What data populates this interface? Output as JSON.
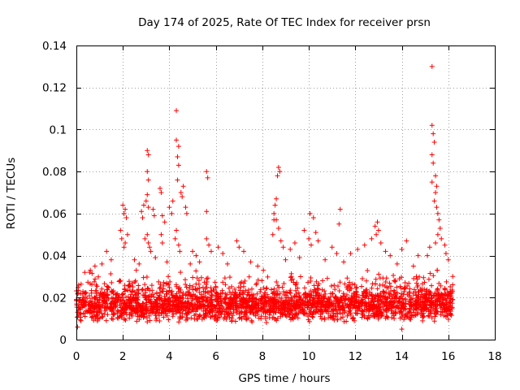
{
  "chart_data": {
    "type": "scatter",
    "title": "Day 174 of 2025, Rate Of TEC Index for receiver prsn",
    "xlabel": "GPS time / hours",
    "ylabel": "ROTI / TECUs",
    "xlim": [
      0,
      18
    ],
    "ylim": [
      0,
      0.14
    ],
    "xticks": [
      0,
      2,
      4,
      6,
      8,
      10,
      12,
      14,
      16,
      18
    ],
    "yticks": [
      0,
      0.02,
      0.04,
      0.06,
      0.08,
      0.1,
      0.12,
      0.14
    ],
    "xtick_labels": [
      "0",
      "2",
      "4",
      "6",
      "8",
      "10",
      "12",
      "14",
      "16",
      "18"
    ],
    "ytick_labels": [
      "0",
      "0.02",
      "0.04",
      "0.06",
      "0.08",
      "0.1",
      "0.12",
      "0.14"
    ],
    "grid": true,
    "marker": "+",
    "color": "#ff0000",
    "bulk": {
      "x_range": [
        0,
        16.2
      ],
      "y_typical_range": [
        0.008,
        0.03
      ],
      "y_median": 0.016,
      "count": 2600
    },
    "series": [
      {
        "name": "ROTI",
        "points": [
          [
            15.3,
            0.13
          ],
          [
            4.3,
            0.109
          ],
          [
            15.3,
            0.102
          ],
          [
            15.35,
            0.098
          ],
          [
            15.4,
            0.094
          ],
          [
            4.3,
            0.095
          ],
          [
            4.4,
            0.092
          ],
          [
            3.05,
            0.09
          ],
          [
            3.1,
            0.088
          ],
          [
            4.35,
            0.087
          ],
          [
            4.4,
            0.083
          ],
          [
            15.3,
            0.088
          ],
          [
            15.35,
            0.084
          ],
          [
            8.7,
            0.082
          ],
          [
            8.75,
            0.08
          ],
          [
            8.65,
            0.078
          ],
          [
            3.05,
            0.08
          ],
          [
            5.6,
            0.08
          ],
          [
            5.65,
            0.077
          ],
          [
            15.45,
            0.078
          ],
          [
            3.1,
            0.076
          ],
          [
            4.35,
            0.076
          ],
          [
            15.3,
            0.075
          ],
          [
            4.6,
            0.073
          ],
          [
            4.5,
            0.07
          ],
          [
            4.55,
            0.068
          ],
          [
            3.6,
            0.072
          ],
          [
            3.65,
            0.07
          ],
          [
            15.5,
            0.073
          ],
          [
            15.45,
            0.07
          ],
          [
            3.05,
            0.069
          ],
          [
            3.0,
            0.066
          ],
          [
            8.6,
            0.067
          ],
          [
            8.55,
            0.064
          ],
          [
            15.4,
            0.066
          ],
          [
            15.5,
            0.063
          ],
          [
            2.0,
            0.064
          ],
          [
            2.1,
            0.062
          ],
          [
            2.15,
            0.058
          ],
          [
            2.05,
            0.06
          ],
          [
            3.1,
            0.063
          ],
          [
            2.9,
            0.064
          ],
          [
            2.8,
            0.061
          ],
          [
            2.85,
            0.058
          ],
          [
            4.15,
            0.066
          ],
          [
            4.0,
            0.063
          ],
          [
            4.1,
            0.06
          ],
          [
            3.3,
            0.062
          ],
          [
            3.35,
            0.059
          ],
          [
            3.7,
            0.059
          ],
          [
            3.8,
            0.056
          ],
          [
            4.7,
            0.063
          ],
          [
            4.75,
            0.06
          ],
          [
            5.6,
            0.061
          ],
          [
            8.5,
            0.06
          ],
          [
            8.6,
            0.057
          ],
          [
            10.05,
            0.06
          ],
          [
            10.2,
            0.058
          ],
          [
            11.35,
            0.062
          ],
          [
            11.3,
            0.055
          ],
          [
            12.95,
            0.056
          ],
          [
            12.85,
            0.054
          ],
          [
            13.0,
            0.052
          ],
          [
            15.55,
            0.06
          ],
          [
            15.6,
            0.057
          ],
          [
            15.65,
            0.053
          ],
          [
            15.55,
            0.05
          ],
          [
            15.7,
            0.048
          ],
          [
            15.45,
            0.046
          ],
          [
            1.9,
            0.052
          ],
          [
            1.95,
            0.048
          ],
          [
            2.1,
            0.046
          ],
          [
            2.2,
            0.05
          ],
          [
            2.05,
            0.044
          ],
          [
            3.05,
            0.05
          ],
          [
            3.1,
            0.046
          ],
          [
            3.15,
            0.044
          ],
          [
            2.95,
            0.048
          ],
          [
            3.2,
            0.042
          ],
          [
            4.3,
            0.052
          ],
          [
            4.25,
            0.048
          ],
          [
            4.4,
            0.045
          ],
          [
            4.45,
            0.042
          ],
          [
            3.65,
            0.05
          ],
          [
            3.7,
            0.046
          ],
          [
            5.0,
            0.042
          ],
          [
            5.15,
            0.04
          ],
          [
            5.6,
            0.048
          ],
          [
            5.7,
            0.045
          ],
          [
            5.8,
            0.042
          ],
          [
            6.1,
            0.044
          ],
          [
            6.3,
            0.041
          ],
          [
            6.9,
            0.047
          ],
          [
            7.0,
            0.044
          ],
          [
            7.2,
            0.042
          ],
          [
            8.5,
            0.057
          ],
          [
            8.45,
            0.05
          ],
          [
            8.7,
            0.053
          ],
          [
            8.8,
            0.047
          ],
          [
            8.9,
            0.044
          ],
          [
            9.2,
            0.043
          ],
          [
            9.4,
            0.046
          ],
          [
            9.8,
            0.052
          ],
          [
            10.0,
            0.048
          ],
          [
            10.1,
            0.045
          ],
          [
            10.3,
            0.051
          ],
          [
            10.4,
            0.047
          ],
          [
            11.0,
            0.044
          ],
          [
            11.2,
            0.041
          ],
          [
            11.8,
            0.041
          ],
          [
            12.1,
            0.043
          ],
          [
            12.4,
            0.045
          ],
          [
            12.7,
            0.048
          ],
          [
            12.9,
            0.05
          ],
          [
            13.1,
            0.046
          ],
          [
            13.3,
            0.042
          ],
          [
            13.5,
            0.04
          ],
          [
            14.0,
            0.043
          ],
          [
            14.2,
            0.047
          ],
          [
            14.7,
            0.04
          ],
          [
            15.1,
            0.04
          ],
          [
            15.2,
            0.044
          ],
          [
            15.85,
            0.045
          ],
          [
            15.9,
            0.041
          ],
          [
            16.0,
            0.038
          ],
          [
            1.3,
            0.042
          ],
          [
            1.5,
            0.038
          ],
          [
            0.8,
            0.035
          ],
          [
            0.6,
            0.033
          ],
          [
            1.1,
            0.036
          ],
          [
            2.5,
            0.038
          ],
          [
            2.7,
            0.036
          ],
          [
            3.4,
            0.039
          ],
          [
            3.9,
            0.037
          ],
          [
            4.9,
            0.036
          ],
          [
            5.3,
            0.037
          ],
          [
            6.5,
            0.036
          ],
          [
            7.5,
            0.037
          ],
          [
            7.8,
            0.035
          ],
          [
            9.0,
            0.038
          ],
          [
            9.6,
            0.039
          ],
          [
            10.7,
            0.038
          ],
          [
            11.5,
            0.037
          ],
          [
            13.8,
            0.036
          ],
          [
            14.5,
            0.035
          ],
          [
            0.1,
            0.026
          ],
          [
            0.05,
            0.006
          ],
          [
            14.0,
            0.005
          ],
          [
            0.2,
            0.009
          ],
          [
            16.1,
            0.012
          ]
        ]
      }
    ]
  }
}
